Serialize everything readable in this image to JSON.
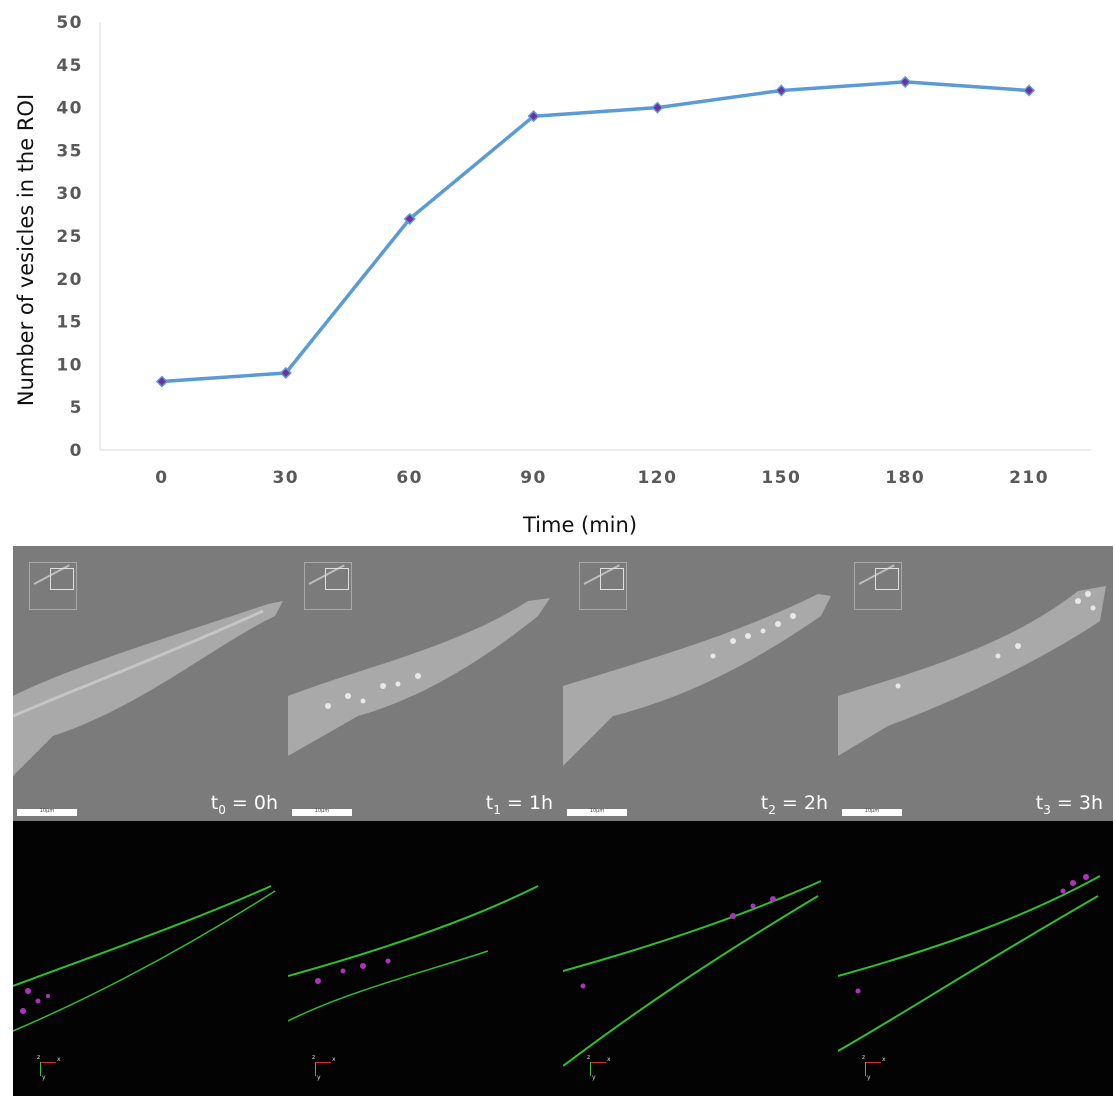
{
  "chart_data": {
    "type": "line",
    "x": [
      0,
      30,
      60,
      90,
      120,
      150,
      180,
      210
    ],
    "values": [
      8,
      9,
      27,
      39,
      40,
      42,
      43,
      42
    ],
    "xlabel": "Time (min)",
    "ylabel": "Number of vesicles in the ROI",
    "ylim": [
      0,
      50
    ],
    "yticks": [
      0,
      5,
      10,
      15,
      20,
      25,
      30,
      35,
      40,
      45,
      50
    ],
    "grid": false,
    "legend": "none",
    "line_color": "#5b9bd5",
    "marker_color": "#7030a0"
  },
  "panels": {
    "em": [
      {
        "t": "t",
        "sub": "0",
        "rest": " = 0h",
        "scale": "10µm"
      },
      {
        "t": "t",
        "sub": "1",
        "rest": " = 1h",
        "scale": "10µm"
      },
      {
        "t": "t",
        "sub": "2",
        "rest": " = 2h",
        "scale": "10µm"
      },
      {
        "t": "t",
        "sub": "3",
        "rest": " = 3h",
        "scale": "10µm"
      }
    ],
    "axis_labels": {
      "z": "z",
      "x": "x",
      "y": "y"
    },
    "em_background": "#7b7b7b",
    "fluor_membrane": "#2fbf2f",
    "fluor_vesicle": "#b030c0"
  }
}
